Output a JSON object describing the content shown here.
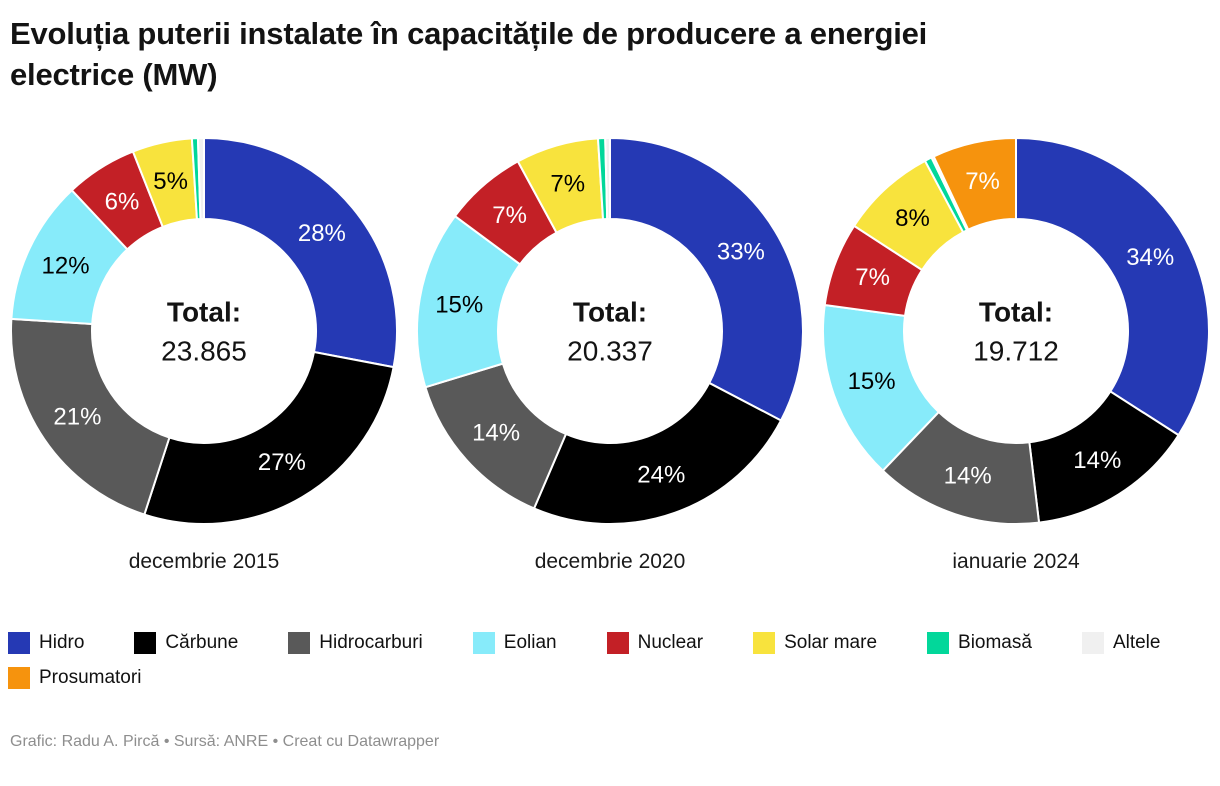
{
  "header": {
    "title": "Evoluția puterii instalate în capacitățile de producere a energiei electrice (MW)"
  },
  "palette": {
    "hidro": {
      "label": "Hidro",
      "color": "#2539b4",
      "label_color": "#ffffff"
    },
    "carbune": {
      "label": "Cărbune",
      "color": "#000000",
      "label_color": "#ffffff"
    },
    "hidrocarburi": {
      "label": "Hidrocarburi",
      "color": "#595959",
      "label_color": "#ffffff"
    },
    "eolian": {
      "label": "Eolian",
      "color": "#87ebfa",
      "label_color": "#000000"
    },
    "nuclear": {
      "label": "Nuclear",
      "color": "#c32026",
      "label_color": "#ffffff"
    },
    "solar": {
      "label": "Solar mare",
      "color": "#f8e33d",
      "label_color": "#000000"
    },
    "biomasa": {
      "label": "Biomasă",
      "color": "#02d79a",
      "label_color": "#000000"
    },
    "altele": {
      "label": "Altele",
      "color": "#f0f0f0",
      "label_color": "#000000"
    },
    "prosumatori": {
      "label": "Prosumatori",
      "color": "#f6930d",
      "label_color": "#ffffff"
    }
  },
  "chart_data": [
    {
      "type": "pie",
      "period": "decembrie 2015",
      "center": {
        "label": "Total:",
        "value": "23.865"
      },
      "slices": [
        {
          "key": "hidro",
          "pct_label": "28%",
          "value": 28
        },
        {
          "key": "carbune",
          "pct_label": "27%",
          "value": 27
        },
        {
          "key": "hidrocarburi",
          "pct_label": "21%",
          "value": 21
        },
        {
          "key": "eolian",
          "pct_label": "12%",
          "value": 12
        },
        {
          "key": "nuclear",
          "pct_label": "6%",
          "value": 6
        },
        {
          "key": "solar",
          "pct_label": "5%",
          "value": 5
        },
        {
          "key": "biomasa",
          "pct_label": "",
          "value": 0.5
        },
        {
          "key": "altele",
          "pct_label": "",
          "value": 0.5
        }
      ]
    },
    {
      "type": "pie",
      "period": "decembrie 2020",
      "center": {
        "label": "Total:",
        "value": "20.337"
      },
      "slices": [
        {
          "key": "hidro",
          "pct_label": "33%",
          "value": 33
        },
        {
          "key": "carbune",
          "pct_label": "24%",
          "value": 24
        },
        {
          "key": "hidrocarburi",
          "pct_label": "14%",
          "value": 14
        },
        {
          "key": "eolian",
          "pct_label": "15%",
          "value": 15
        },
        {
          "key": "nuclear",
          "pct_label": "7%",
          "value": 7
        },
        {
          "key": "solar",
          "pct_label": "7%",
          "value": 7
        },
        {
          "key": "biomasa",
          "pct_label": "",
          "value": 0.6
        },
        {
          "key": "altele",
          "pct_label": "",
          "value": 0.4
        }
      ]
    },
    {
      "type": "pie",
      "period": "ianuarie 2024",
      "center": {
        "label": "Total:",
        "value": "19.712"
      },
      "slices": [
        {
          "key": "hidro",
          "pct_label": "34%",
          "value": 34
        },
        {
          "key": "carbune",
          "pct_label": "14%",
          "value": 14
        },
        {
          "key": "hidrocarburi",
          "pct_label": "14%",
          "value": 14
        },
        {
          "key": "eolian",
          "pct_label": "15%",
          "value": 15
        },
        {
          "key": "nuclear",
          "pct_label": "7%",
          "value": 7
        },
        {
          "key": "solar",
          "pct_label": "8%",
          "value": 8
        },
        {
          "key": "biomasa",
          "pct_label": "",
          "value": 0.6
        },
        {
          "key": "altele",
          "pct_label": "",
          "value": 0.2
        },
        {
          "key": "prosumatori",
          "pct_label": "7%",
          "value": 7
        }
      ]
    }
  ],
  "legend": {
    "rows": [
      [
        "hidro",
        "carbune",
        "hidrocarburi",
        "eolian",
        "nuclear",
        "solar",
        "biomasa",
        "altele"
      ],
      [
        "prosumatori"
      ]
    ]
  },
  "footer": {
    "credit": "Grafic: Radu A. Pircă • Sursă: ANRE • Creat cu Datawrapper"
  }
}
